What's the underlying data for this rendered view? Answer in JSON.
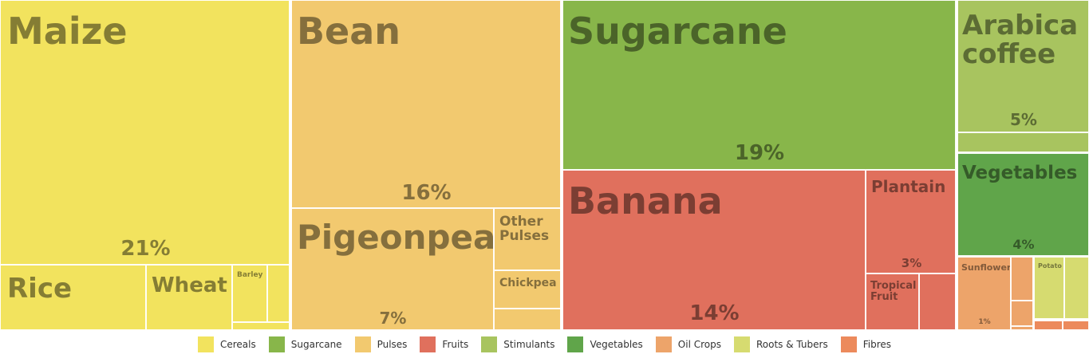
{
  "chart_data": {
    "type": "treemap",
    "title": "",
    "legend": {
      "placement": "bottom",
      "entries": [
        {
          "name": "Cereals",
          "color": "#f2e35e"
        },
        {
          "name": "Sugarcane",
          "color": "#88b64a"
        },
        {
          "name": "Pulses",
          "color": "#f2c96f"
        },
        {
          "name": "Fruits",
          "color": "#e0705d"
        },
        {
          "name": "Stimulants",
          "color": "#a8c45f"
        },
        {
          "name": "Vegetables",
          "color": "#60a54a"
        },
        {
          "name": "Oil Crops",
          "color": "#eda46a"
        },
        {
          "name": "Roots & Tubers",
          "color": "#d6db70"
        },
        {
          "name": "Fibres",
          "color": "#ec8a5c"
        }
      ]
    },
    "groups": [
      {
        "name": "Cereals",
        "percent_label": "21%",
        "items": [
          "Maize",
          "Rice",
          "Wheat",
          "Barley"
        ]
      },
      {
        "name": "Pulses",
        "percent_label": "16%",
        "items": [
          "Bean",
          "Pigeonpea",
          "Other Pulses",
          "Chickpea"
        ]
      },
      {
        "name": "Sugarcane",
        "percent_label": "19%",
        "items": [
          "Sugarcane"
        ]
      },
      {
        "name": "Fruits",
        "percent_label": "14%",
        "items": [
          "Banana",
          "Plantain",
          "Tropical Fruit"
        ]
      },
      {
        "name": "Stimulants",
        "percent_label": "5%",
        "items": [
          "Arabica coffee"
        ]
      },
      {
        "name": "Vegetables",
        "percent_label": "4%",
        "items": [
          "Vegetables"
        ]
      },
      {
        "name": "Oil Crops",
        "percent_label": "1%",
        "items": [
          "Sunflower"
        ]
      },
      {
        "name": "Roots & Tubers",
        "items": [
          "Potato"
        ]
      }
    ],
    "percent_labels": {
      "pigeonpea": "7%",
      "plantain": "3%"
    }
  }
}
